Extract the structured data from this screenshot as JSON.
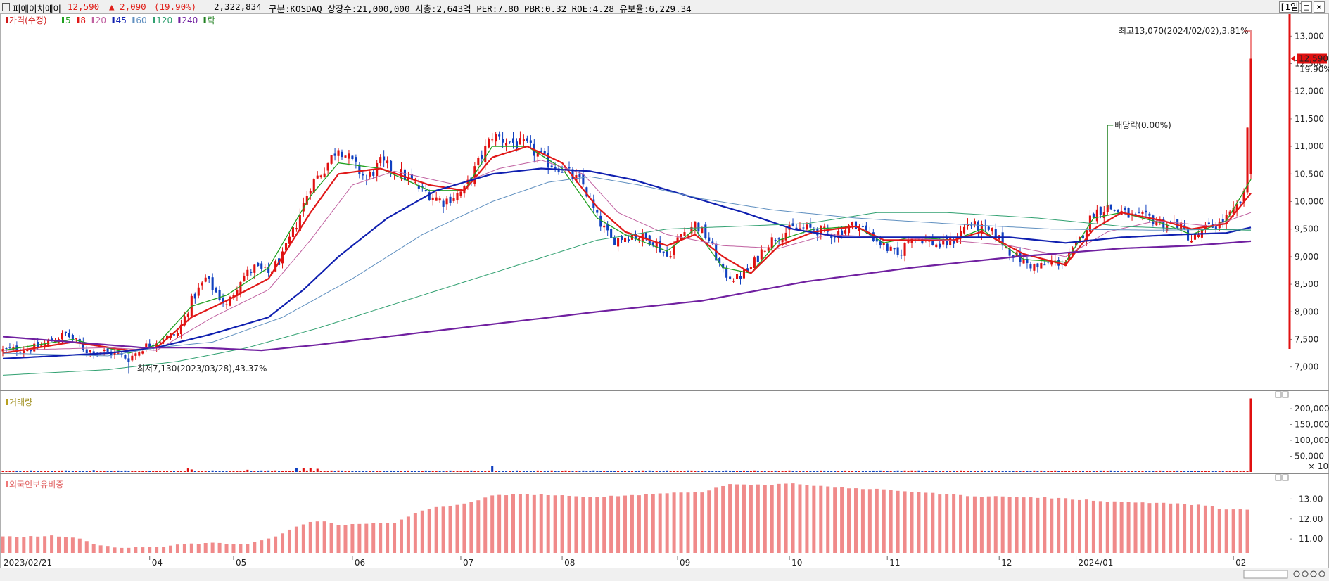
{
  "header": {
    "name": "피에이치에이",
    "price": "12,590",
    "change": "▲ 2,090",
    "change_pct": "(19.90%)",
    "volume": "2,322,834",
    "info": "구분:KOSDAQ  상장수:21,000,000  시총:2,643억  PER:7.80  PBR:0.32  ROE:4.28  유보율:6,229.34",
    "period": "[1일]"
  },
  "legend": [
    {
      "label": "가격(수정)",
      "color": "#d01818"
    },
    {
      "label": "5",
      "color": "#20a020"
    },
    {
      "label": "8",
      "color": "#e01818"
    },
    {
      "label": "20",
      "color": "#c060a0"
    },
    {
      "label": "45",
      "color": "#1020b0"
    },
    {
      "label": "60",
      "color": "#6090c0"
    },
    {
      "label": "120",
      "color": "#30a070"
    },
    {
      "label": "240",
      "color": "#7020a0"
    },
    {
      "label": "락",
      "color": "#208020"
    }
  ],
  "annotations": {
    "high": "최고13,070(2024/02/02),3.81%",
    "low": "최저7,130(2023/03/28),43.37%",
    "dividend": "배당락(0.00%)"
  },
  "price_tag": {
    "price": "12,590",
    "pct": "19.90%"
  },
  "chart_data": [
    {
      "type": "candlestick",
      "title": "가격(수정)",
      "ylim": [
        6600,
        13400
      ],
      "yticks": [
        "7,000",
        "7,500",
        "8,000",
        "8,500",
        "9,000",
        "9,500",
        "10,000",
        "10,500",
        "11,000",
        "11,500",
        "12,000",
        "12,500",
        "13,000"
      ],
      "x_ticks": [
        "2023/02/21",
        "04",
        "05",
        "06",
        "07",
        "08",
        "09",
        "10",
        "11",
        "12",
        "2024/01",
        "02"
      ],
      "close_path": [
        [
          0,
          7300
        ],
        [
          10,
          7350
        ],
        [
          18,
          7600
        ],
        [
          24,
          7300
        ],
        [
          32,
          7250
        ],
        [
          36,
          7150
        ],
        [
          40,
          7350
        ],
        [
          45,
          7500
        ],
        [
          50,
          7600
        ],
        [
          54,
          8200
        ],
        [
          58,
          8600
        ],
        [
          64,
          8100
        ],
        [
          68,
          8600
        ],
        [
          72,
          8800
        ],
        [
          76,
          8700
        ],
        [
          80,
          9000
        ],
        [
          84,
          9600
        ],
        [
          88,
          10300
        ],
        [
          92,
          10600
        ],
        [
          96,
          11000
        ],
        [
          100,
          10700
        ],
        [
          104,
          10400
        ],
        [
          108,
          10700
        ],
        [
          114,
          10500
        ],
        [
          120,
          10200
        ],
        [
          126,
          10000
        ],
        [
          132,
          10200
        ],
        [
          136,
          10700
        ],
        [
          140,
          11200
        ],
        [
          144,
          11100
        ],
        [
          150,
          11000
        ],
        [
          156,
          10700
        ],
        [
          160,
          10600
        ],
        [
          166,
          10300
        ],
        [
          170,
          9700
        ],
        [
          174,
          9300
        ],
        [
          180,
          9400
        ],
        [
          186,
          9300
        ],
        [
          190,
          9000
        ],
        [
          194,
          9400
        ],
        [
          198,
          9600
        ],
        [
          202,
          9300
        ],
        [
          206,
          8700
        ],
        [
          210,
          8600
        ],
        [
          214,
          8800
        ],
        [
          218,
          9200
        ],
        [
          222,
          9400
        ],
        [
          226,
          9500
        ],
        [
          232,
          9500
        ],
        [
          238,
          9400
        ],
        [
          244,
          9600
        ],
        [
          248,
          9400
        ],
        [
          252,
          9200
        ],
        [
          256,
          9000
        ],
        [
          260,
          9400
        ],
        [
          264,
          9300
        ],
        [
          268,
          9200
        ],
        [
          272,
          9300
        ],
        [
          276,
          9600
        ],
        [
          280,
          9500
        ],
        [
          284,
          9400
        ],
        [
          288,
          9100
        ],
        [
          292,
          8900
        ],
        [
          296,
          8800
        ],
        [
          300,
          8900
        ],
        [
          304,
          8900
        ],
        [
          308,
          9300
        ],
        [
          312,
          9800
        ],
        [
          316,
          9900
        ],
        [
          320,
          9800
        ],
        [
          324,
          9700
        ],
        [
          328,
          9700
        ],
        [
          332,
          9600
        ],
        [
          336,
          9600
        ],
        [
          340,
          9300
        ],
        [
          344,
          9500
        ],
        [
          348,
          9600
        ],
        [
          352,
          9800
        ],
        [
          355,
          10100
        ],
        [
          357,
          12590
        ]
      ],
      "ma": {
        "5": [
          [
            0,
            7300
          ],
          [
            20,
            7500
          ],
          [
            36,
            7250
          ],
          [
            44,
            7400
          ],
          [
            54,
            8100
          ],
          [
            64,
            8300
          ],
          [
            76,
            8800
          ],
          [
            88,
            10100
          ],
          [
            96,
            10700
          ],
          [
            108,
            10600
          ],
          [
            122,
            10200
          ],
          [
            132,
            10200
          ],
          [
            140,
            11000
          ],
          [
            150,
            11000
          ],
          [
            160,
            10600
          ],
          [
            170,
            9700
          ],
          [
            178,
            9400
          ],
          [
            190,
            9100
          ],
          [
            198,
            9500
          ],
          [
            206,
            8800
          ],
          [
            214,
            8700
          ],
          [
            222,
            9300
          ],
          [
            232,
            9500
          ],
          [
            244,
            9550
          ],
          [
            252,
            9250
          ],
          [
            260,
            9350
          ],
          [
            272,
            9300
          ],
          [
            280,
            9500
          ],
          [
            292,
            8950
          ],
          [
            304,
            8900
          ],
          [
            312,
            9700
          ],
          [
            320,
            9800
          ],
          [
            332,
            9600
          ],
          [
            340,
            9400
          ],
          [
            350,
            9650
          ],
          [
            357,
            10400
          ]
        ],
        "8": [
          [
            0,
            7250
          ],
          [
            20,
            7450
          ],
          [
            36,
            7300
          ],
          [
            44,
            7350
          ],
          [
            54,
            7900
          ],
          [
            64,
            8200
          ],
          [
            76,
            8600
          ],
          [
            88,
            9800
          ],
          [
            96,
            10500
          ],
          [
            108,
            10600
          ],
          [
            122,
            10300
          ],
          [
            132,
            10200
          ],
          [
            140,
            10800
          ],
          [
            150,
            11000
          ],
          [
            160,
            10700
          ],
          [
            170,
            9900
          ],
          [
            178,
            9450
          ],
          [
            190,
            9200
          ],
          [
            198,
            9400
          ],
          [
            206,
            9000
          ],
          [
            214,
            8700
          ],
          [
            222,
            9200
          ],
          [
            232,
            9450
          ],
          [
            244,
            9550
          ],
          [
            252,
            9300
          ],
          [
            260,
            9300
          ],
          [
            272,
            9300
          ],
          [
            280,
            9450
          ],
          [
            292,
            9050
          ],
          [
            304,
            8850
          ],
          [
            312,
            9500
          ],
          [
            320,
            9800
          ],
          [
            332,
            9650
          ],
          [
            340,
            9500
          ],
          [
            350,
            9600
          ],
          [
            357,
            10150
          ]
        ],
        "20": [
          [
            0,
            7300
          ],
          [
            30,
            7350
          ],
          [
            44,
            7300
          ],
          [
            60,
            7900
          ],
          [
            76,
            8400
          ],
          [
            88,
            9300
          ],
          [
            100,
            10300
          ],
          [
            112,
            10550
          ],
          [
            130,
            10300
          ],
          [
            142,
            10600
          ],
          [
            154,
            10750
          ],
          [
            166,
            10500
          ],
          [
            176,
            9800
          ],
          [
            190,
            9400
          ],
          [
            206,
            9200
          ],
          [
            222,
            9150
          ],
          [
            236,
            9400
          ],
          [
            252,
            9350
          ],
          [
            270,
            9300
          ],
          [
            288,
            9200
          ],
          [
            304,
            9000
          ],
          [
            316,
            9450
          ],
          [
            330,
            9650
          ],
          [
            346,
            9550
          ],
          [
            357,
            9800
          ]
        ],
        "45": [
          [
            0,
            7150
          ],
          [
            30,
            7250
          ],
          [
            44,
            7350
          ],
          [
            60,
            7600
          ],
          [
            76,
            7900
          ],
          [
            86,
            8400
          ],
          [
            96,
            9000
          ],
          [
            110,
            9700
          ],
          [
            124,
            10200
          ],
          [
            140,
            10500
          ],
          [
            154,
            10600
          ],
          [
            168,
            10550
          ],
          [
            180,
            10400
          ],
          [
            196,
            10100
          ],
          [
            212,
            9800
          ],
          [
            226,
            9500
          ],
          [
            240,
            9350
          ],
          [
            256,
            9350
          ],
          [
            270,
            9350
          ],
          [
            288,
            9350
          ],
          [
            304,
            9250
          ],
          [
            320,
            9350
          ],
          [
            336,
            9400
          ],
          [
            350,
            9430
          ],
          [
            357,
            9530
          ]
        ],
        "60": [
          [
            0,
            7250
          ],
          [
            30,
            7200
          ],
          [
            44,
            7350
          ],
          [
            60,
            7450
          ],
          [
            80,
            7900
          ],
          [
            100,
            8600
          ],
          [
            120,
            9400
          ],
          [
            140,
            10000
          ],
          [
            156,
            10350
          ],
          [
            168,
            10450
          ],
          [
            182,
            10300
          ],
          [
            200,
            10050
          ],
          [
            220,
            9850
          ],
          [
            244,
            9700
          ],
          [
            270,
            9600
          ],
          [
            300,
            9500
          ],
          [
            330,
            9480
          ],
          [
            357,
            9500
          ]
        ],
        "120": [
          [
            0,
            6850
          ],
          [
            30,
            6950
          ],
          [
            50,
            7100
          ],
          [
            70,
            7350
          ],
          [
            90,
            7700
          ],
          [
            110,
            8100
          ],
          [
            130,
            8500
          ],
          [
            150,
            8900
          ],
          [
            170,
            9300
          ],
          [
            190,
            9500
          ],
          [
            210,
            9550
          ],
          [
            230,
            9600
          ],
          [
            250,
            9800
          ],
          [
            270,
            9800
          ],
          [
            296,
            9700
          ],
          [
            320,
            9550
          ],
          [
            340,
            9500
          ],
          [
            357,
            9480
          ]
        ],
        "240": [
          [
            0,
            7550
          ],
          [
            20,
            7450
          ],
          [
            40,
            7350
          ],
          [
            56,
            7350
          ],
          [
            74,
            7300
          ],
          [
            90,
            7400
          ],
          [
            110,
            7550
          ],
          [
            130,
            7700
          ],
          [
            150,
            7850
          ],
          [
            170,
            8000
          ],
          [
            200,
            8200
          ],
          [
            230,
            8550
          ],
          [
            260,
            8800
          ],
          [
            290,
            9000
          ],
          [
            320,
            9150
          ],
          [
            340,
            9200
          ],
          [
            357,
            9280
          ]
        ]
      },
      "n_candles": 358
    },
    {
      "type": "bar",
      "title": "거래량",
      "yticks": [
        "50,000",
        "100,000",
        "150,000",
        "200,000"
      ],
      "unit": "× 10",
      "ylim": [
        0,
        240000
      ],
      "peaks": [
        [
          26,
          6000
        ],
        [
          53,
          11000
        ],
        [
          54,
          8000
        ],
        [
          70,
          7000
        ],
        [
          78,
          5000
        ],
        [
          84,
          12000
        ],
        [
          86,
          13000
        ],
        [
          88,
          12000
        ],
        [
          90,
          10000
        ],
        [
          140,
          20000
        ],
        [
          207,
          5000
        ],
        [
          306,
          2500
        ],
        [
          323,
          3000
        ],
        [
          355,
          4000
        ],
        [
          357,
          232283
        ]
      ],
      "base": 2500
    },
    {
      "type": "bar",
      "title": "외국인보유비중",
      "yticks": [
        "11.00",
        "12.00",
        "13.00"
      ],
      "ylim": [
        10.3,
        14.0
      ],
      "series_path": [
        [
          0,
          11.1
        ],
        [
          14,
          11.15
        ],
        [
          22,
          11.0
        ],
        [
          28,
          10.65
        ],
        [
          36,
          10.55
        ],
        [
          44,
          10.6
        ],
        [
          54,
          10.75
        ],
        [
          60,
          10.8
        ],
        [
          64,
          10.75
        ],
        [
          70,
          10.75
        ],
        [
          76,
          11.0
        ],
        [
          84,
          11.6
        ],
        [
          88,
          11.85
        ],
        [
          92,
          11.9
        ],
        [
          96,
          11.7
        ],
        [
          104,
          11.75
        ],
        [
          112,
          11.8
        ],
        [
          118,
          12.3
        ],
        [
          124,
          12.6
        ],
        [
          132,
          12.75
        ],
        [
          140,
          13.15
        ],
        [
          146,
          13.25
        ],
        [
          156,
          13.2
        ],
        [
          166,
          13.1
        ],
        [
          176,
          13.15
        ],
        [
          190,
          13.3
        ],
        [
          200,
          13.35
        ],
        [
          208,
          13.75
        ],
        [
          218,
          13.7
        ],
        [
          226,
          13.8
        ],
        [
          236,
          13.6
        ],
        [
          248,
          13.5
        ],
        [
          258,
          13.4
        ],
        [
          268,
          13.25
        ],
        [
          278,
          13.15
        ],
        [
          290,
          13.1
        ],
        [
          300,
          13.05
        ],
        [
          310,
          12.95
        ],
        [
          320,
          12.85
        ],
        [
          332,
          12.8
        ],
        [
          342,
          12.7
        ],
        [
          350,
          12.5
        ],
        [
          357,
          12.45
        ]
      ]
    }
  ]
}
